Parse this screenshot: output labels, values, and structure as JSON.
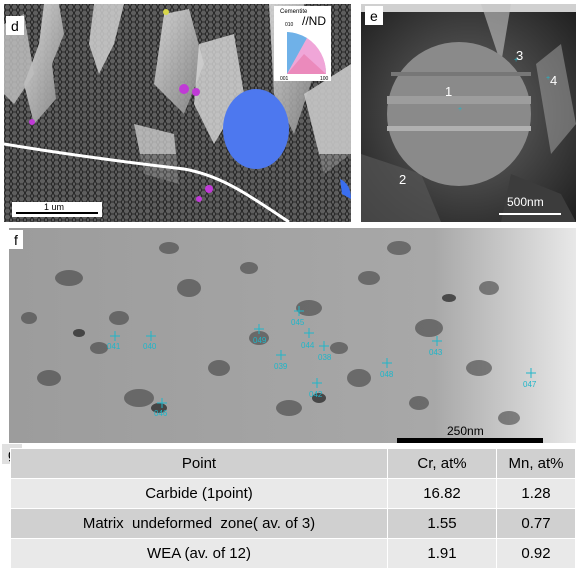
{
  "panels": {
    "d": {
      "label": "d",
      "scalebar": "1 um",
      "legend_title": "Cementite",
      "legend_tick_top": "010",
      "legend_tick_left": "001",
      "legend_tick_right": "100",
      "direction": "//ND"
    },
    "e": {
      "label": "e",
      "scalebar": "500nm",
      "points": [
        "1",
        "2",
        "3",
        "4"
      ]
    },
    "f": {
      "label": "f",
      "scalebar": "250nm",
      "markers": [
        "041",
        "040",
        "046",
        "049",
        "045",
        "044",
        "038",
        "039",
        "042",
        "048",
        "043",
        "047"
      ]
    },
    "g": {
      "label": "g"
    }
  },
  "table": {
    "headers": [
      "Point",
      "Cr, at%",
      "Mn, at%"
    ],
    "rows": [
      {
        "point": "Carbide (1point)",
        "cr": "16.82",
        "mn": "1.28"
      },
      {
        "point": "Matrix  undeformed  zone( av. of 3)",
        "cr": "1.55",
        "mn": "0.77"
      },
      {
        "point": "WEA (av. of 12)",
        "cr": "1.91",
        "mn": "0.92"
      }
    ]
  },
  "colors": {
    "marker": "#1fb6c9",
    "grain": "#3a6ef0",
    "magenta": "#c03ad6"
  }
}
